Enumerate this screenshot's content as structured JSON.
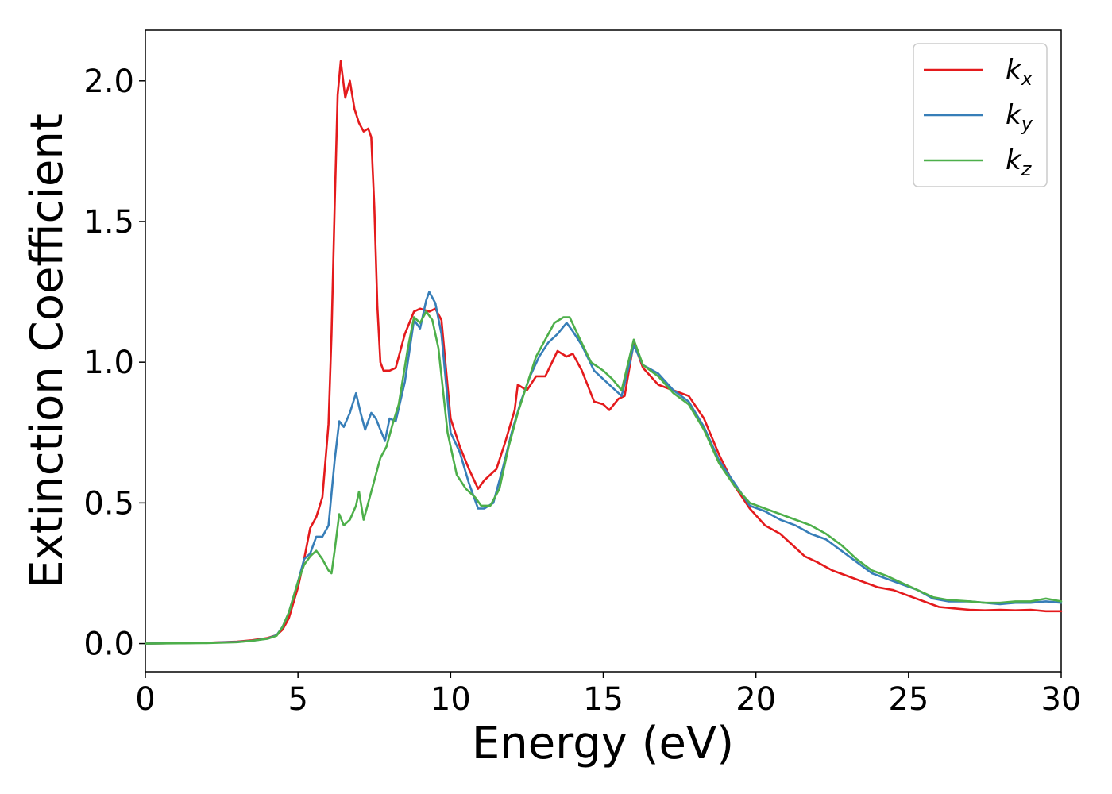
{
  "chart_data": {
    "type": "line",
    "title": "",
    "xlabel": "Energy (eV)",
    "ylabel": "Extinction Coefficient",
    "xlim": [
      0,
      30
    ],
    "ylim": [
      -0.1,
      2.18
    ],
    "xticks": [
      0,
      5,
      10,
      15,
      20,
      25,
      30
    ],
    "xtick_labels": [
      "0",
      "5",
      "10",
      "15",
      "20",
      "25",
      "30"
    ],
    "yticks": [
      0.0,
      0.5,
      1.0,
      1.5,
      2.0
    ],
    "ytick_labels": [
      "0.0",
      "0.5",
      "1.0",
      "1.5",
      "2.0"
    ],
    "grid": false,
    "legend_position": "top-right",
    "series": [
      {
        "name": "k_x",
        "label_main": "k",
        "label_sub": "x",
        "color": "#e41a1c",
        "points": [
          [
            0,
            0.0
          ],
          [
            2,
            0.003
          ],
          [
            3,
            0.007
          ],
          [
            3.5,
            0.012
          ],
          [
            4,
            0.02
          ],
          [
            4.3,
            0.03
          ],
          [
            4.5,
            0.05
          ],
          [
            4.7,
            0.09
          ],
          [
            5,
            0.2
          ],
          [
            5.2,
            0.3
          ],
          [
            5.4,
            0.41
          ],
          [
            5.6,
            0.45
          ],
          [
            5.8,
            0.52
          ],
          [
            6.0,
            0.78
          ],
          [
            6.1,
            1.1
          ],
          [
            6.2,
            1.55
          ],
          [
            6.3,
            1.95
          ],
          [
            6.4,
            2.07
          ],
          [
            6.55,
            1.94
          ],
          [
            6.7,
            2.0
          ],
          [
            6.85,
            1.9
          ],
          [
            7.0,
            1.85
          ],
          [
            7.15,
            1.82
          ],
          [
            7.3,
            1.83
          ],
          [
            7.4,
            1.8
          ],
          [
            7.5,
            1.55
          ],
          [
            7.6,
            1.2
          ],
          [
            7.7,
            1.0
          ],
          [
            7.8,
            0.97
          ],
          [
            8.0,
            0.97
          ],
          [
            8.2,
            0.98
          ],
          [
            8.5,
            1.1
          ],
          [
            8.8,
            1.18
          ],
          [
            9.0,
            1.19
          ],
          [
            9.3,
            1.18
          ],
          [
            9.5,
            1.19
          ],
          [
            9.7,
            1.15
          ],
          [
            10.0,
            0.8
          ],
          [
            10.3,
            0.7
          ],
          [
            10.6,
            0.62
          ],
          [
            10.9,
            0.55
          ],
          [
            11.1,
            0.58
          ],
          [
            11.5,
            0.62
          ],
          [
            11.8,
            0.72
          ],
          [
            12.1,
            0.83
          ],
          [
            12.2,
            0.92
          ],
          [
            12.5,
            0.9
          ],
          [
            12.8,
            0.95
          ],
          [
            13.1,
            0.95
          ],
          [
            13.5,
            1.04
          ],
          [
            13.8,
            1.02
          ],
          [
            14.0,
            1.03
          ],
          [
            14.3,
            0.97
          ],
          [
            14.7,
            0.86
          ],
          [
            15.0,
            0.85
          ],
          [
            15.2,
            0.83
          ],
          [
            15.5,
            0.87
          ],
          [
            15.7,
            0.88
          ],
          [
            16.0,
            1.07
          ],
          [
            16.3,
            0.98
          ],
          [
            16.8,
            0.92
          ],
          [
            17.3,
            0.9
          ],
          [
            17.8,
            0.88
          ],
          [
            18.3,
            0.8
          ],
          [
            18.8,
            0.67
          ],
          [
            19.3,
            0.56
          ],
          [
            19.8,
            0.48
          ],
          [
            20.3,
            0.42
          ],
          [
            20.8,
            0.39
          ],
          [
            21.2,
            0.35
          ],
          [
            21.6,
            0.31
          ],
          [
            22.0,
            0.29
          ],
          [
            22.5,
            0.26
          ],
          [
            23.0,
            0.24
          ],
          [
            23.5,
            0.22
          ],
          [
            24.0,
            0.2
          ],
          [
            24.5,
            0.19
          ],
          [
            25.0,
            0.17
          ],
          [
            25.5,
            0.15
          ],
          [
            26.0,
            0.13
          ],
          [
            26.5,
            0.125
          ],
          [
            27.0,
            0.12
          ],
          [
            27.5,
            0.118
          ],
          [
            28.0,
            0.12
          ],
          [
            28.5,
            0.118
          ],
          [
            29.0,
            0.12
          ],
          [
            29.5,
            0.115
          ],
          [
            30.0,
            0.115
          ]
        ]
      },
      {
        "name": "k_y",
        "label_main": "k",
        "label_sub": "y",
        "color": "#377eb8",
        "points": [
          [
            0,
            0.0
          ],
          [
            2,
            0.003
          ],
          [
            3,
            0.006
          ],
          [
            3.5,
            0.01
          ],
          [
            4,
            0.018
          ],
          [
            4.3,
            0.03
          ],
          [
            4.5,
            0.06
          ],
          [
            4.7,
            0.11
          ],
          [
            5,
            0.22
          ],
          [
            5.2,
            0.3
          ],
          [
            5.4,
            0.32
          ],
          [
            5.6,
            0.38
          ],
          [
            5.8,
            0.38
          ],
          [
            6.0,
            0.42
          ],
          [
            6.2,
            0.65
          ],
          [
            6.35,
            0.79
          ],
          [
            6.5,
            0.77
          ],
          [
            6.7,
            0.82
          ],
          [
            6.9,
            0.89
          ],
          [
            7.05,
            0.82
          ],
          [
            7.2,
            0.76
          ],
          [
            7.4,
            0.82
          ],
          [
            7.55,
            0.8
          ],
          [
            7.7,
            0.76
          ],
          [
            7.85,
            0.72
          ],
          [
            8.0,
            0.8
          ],
          [
            8.2,
            0.79
          ],
          [
            8.5,
            0.93
          ],
          [
            8.8,
            1.15
          ],
          [
            9.0,
            1.12
          ],
          [
            9.2,
            1.22
          ],
          [
            9.3,
            1.25
          ],
          [
            9.5,
            1.21
          ],
          [
            9.7,
            1.1
          ],
          [
            10.0,
            0.75
          ],
          [
            10.3,
            0.68
          ],
          [
            10.6,
            0.57
          ],
          [
            10.9,
            0.48
          ],
          [
            11.1,
            0.48
          ],
          [
            11.4,
            0.5
          ],
          [
            11.7,
            0.62
          ],
          [
            12.0,
            0.75
          ],
          [
            12.3,
            0.86
          ],
          [
            12.6,
            0.95
          ],
          [
            12.9,
            1.02
          ],
          [
            13.2,
            1.07
          ],
          [
            13.5,
            1.1
          ],
          [
            13.8,
            1.14
          ],
          [
            14.0,
            1.11
          ],
          [
            14.3,
            1.06
          ],
          [
            14.7,
            0.97
          ],
          [
            15.0,
            0.94
          ],
          [
            15.3,
            0.91
          ],
          [
            15.6,
            0.88
          ],
          [
            16.0,
            1.06
          ],
          [
            16.3,
            0.99
          ],
          [
            16.8,
            0.96
          ],
          [
            17.3,
            0.9
          ],
          [
            17.8,
            0.86
          ],
          [
            18.3,
            0.77
          ],
          [
            18.8,
            0.65
          ],
          [
            19.3,
            0.57
          ],
          [
            19.8,
            0.49
          ],
          [
            20.3,
            0.47
          ],
          [
            20.8,
            0.44
          ],
          [
            21.3,
            0.42
          ],
          [
            21.8,
            0.39
          ],
          [
            22.3,
            0.37
          ],
          [
            22.8,
            0.33
          ],
          [
            23.3,
            0.29
          ],
          [
            23.8,
            0.25
          ],
          [
            24.3,
            0.23
          ],
          [
            24.8,
            0.21
          ],
          [
            25.3,
            0.19
          ],
          [
            25.8,
            0.16
          ],
          [
            26.3,
            0.15
          ],
          [
            27.0,
            0.15
          ],
          [
            27.5,
            0.145
          ],
          [
            28.0,
            0.14
          ],
          [
            28.5,
            0.145
          ],
          [
            29.0,
            0.145
          ],
          [
            29.5,
            0.15
          ],
          [
            30.0,
            0.145
          ]
        ]
      },
      {
        "name": "k_z",
        "label_main": "k",
        "label_sub": "z",
        "color": "#4daf4a",
        "points": [
          [
            0,
            0.0
          ],
          [
            2,
            0.002
          ],
          [
            3,
            0.005
          ],
          [
            3.5,
            0.01
          ],
          [
            4,
            0.017
          ],
          [
            4.3,
            0.028
          ],
          [
            4.5,
            0.06
          ],
          [
            4.7,
            0.11
          ],
          [
            5,
            0.22
          ],
          [
            5.2,
            0.28
          ],
          [
            5.4,
            0.31
          ],
          [
            5.6,
            0.33
          ],
          [
            5.8,
            0.3
          ],
          [
            6.0,
            0.26
          ],
          [
            6.1,
            0.25
          ],
          [
            6.2,
            0.33
          ],
          [
            6.35,
            0.46
          ],
          [
            6.5,
            0.42
          ],
          [
            6.7,
            0.44
          ],
          [
            6.9,
            0.49
          ],
          [
            7.0,
            0.54
          ],
          [
            7.15,
            0.44
          ],
          [
            7.3,
            0.5
          ],
          [
            7.5,
            0.58
          ],
          [
            7.7,
            0.66
          ],
          [
            7.9,
            0.7
          ],
          [
            8.1,
            0.78
          ],
          [
            8.3,
            0.85
          ],
          [
            8.6,
            1.05
          ],
          [
            8.8,
            1.16
          ],
          [
            9.0,
            1.14
          ],
          [
            9.2,
            1.18
          ],
          [
            9.4,
            1.15
          ],
          [
            9.6,
            1.05
          ],
          [
            9.9,
            0.75
          ],
          [
            10.2,
            0.6
          ],
          [
            10.5,
            0.55
          ],
          [
            10.8,
            0.52
          ],
          [
            11.0,
            0.49
          ],
          [
            11.3,
            0.49
          ],
          [
            11.6,
            0.55
          ],
          [
            11.9,
            0.7
          ],
          [
            12.2,
            0.82
          ],
          [
            12.5,
            0.92
          ],
          [
            12.8,
            1.02
          ],
          [
            13.1,
            1.08
          ],
          [
            13.4,
            1.14
          ],
          [
            13.7,
            1.16
          ],
          [
            13.9,
            1.16
          ],
          [
            14.2,
            1.09
          ],
          [
            14.6,
            1.0
          ],
          [
            15.0,
            0.97
          ],
          [
            15.3,
            0.94
          ],
          [
            15.6,
            0.9
          ],
          [
            16.0,
            1.08
          ],
          [
            16.3,
            0.99
          ],
          [
            16.8,
            0.95
          ],
          [
            17.3,
            0.89
          ],
          [
            17.8,
            0.85
          ],
          [
            18.3,
            0.76
          ],
          [
            18.8,
            0.64
          ],
          [
            19.3,
            0.56
          ],
          [
            19.8,
            0.5
          ],
          [
            20.3,
            0.48
          ],
          [
            20.8,
            0.46
          ],
          [
            21.3,
            0.44
          ],
          [
            21.8,
            0.42
          ],
          [
            22.3,
            0.39
          ],
          [
            22.8,
            0.35
          ],
          [
            23.3,
            0.3
          ],
          [
            23.8,
            0.26
          ],
          [
            24.3,
            0.24
          ],
          [
            24.8,
            0.215
          ],
          [
            25.3,
            0.19
          ],
          [
            25.8,
            0.165
          ],
          [
            26.3,
            0.155
          ],
          [
            27.0,
            0.15
          ],
          [
            27.5,
            0.145
          ],
          [
            28.0,
            0.145
          ],
          [
            28.5,
            0.15
          ],
          [
            29.0,
            0.15
          ],
          [
            29.5,
            0.16
          ],
          [
            30.0,
            0.15
          ]
        ]
      }
    ]
  }
}
